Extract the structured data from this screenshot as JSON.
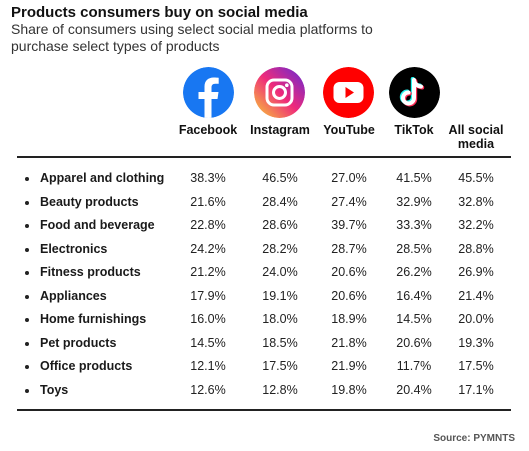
{
  "title": "Products consumers buy on social media",
  "subtitle": "Share of consumers using select social media platforms to purchase select types of products",
  "source": "Source: PYMNTS",
  "icons": {
    "facebook": "facebook-icon",
    "instagram": "instagram-icon",
    "youtube": "youtube-icon",
    "tiktok": "tiktok-icon"
  },
  "colors": {
    "facebook": "#1877f2",
    "instagram_start": "#f9ce34",
    "instagram_mid": "#ee2a7b",
    "instagram_end": "#6228d7",
    "youtube": "#ff0000",
    "tiktok_bg": "#000000",
    "tiktok_cyan": "#25f4ee",
    "tiktok_red": "#fe2c55"
  },
  "chart_data": {
    "type": "table",
    "title": "Products consumers buy on social media",
    "subtitle": "Share of consumers using select social media platforms to purchase select types of products",
    "columns": [
      "Facebook",
      "Instagram",
      "YouTube",
      "TikTok",
      "All social media"
    ],
    "rows": [
      {
        "label": "Apparel and clothing",
        "values": [
          "38.3%",
          "46.5%",
          "27.0%",
          "41.5%",
          "45.5%"
        ]
      },
      {
        "label": "Beauty products",
        "values": [
          "21.6%",
          "28.4%",
          "27.4%",
          "32.9%",
          "32.8%"
        ]
      },
      {
        "label": "Food and beverage",
        "values": [
          "22.8%",
          "28.6%",
          "39.7%",
          "33.3%",
          "32.2%"
        ]
      },
      {
        "label": "Electronics",
        "values": [
          "24.2%",
          "28.2%",
          "28.7%",
          "28.5%",
          "28.8%"
        ]
      },
      {
        "label": "Fitness products",
        "values": [
          "21.2%",
          "24.0%",
          "20.6%",
          "26.2%",
          "26.9%"
        ]
      },
      {
        "label": "Appliances",
        "values": [
          "17.9%",
          "19.1%",
          "20.6%",
          "16.4%",
          "21.4%"
        ]
      },
      {
        "label": "Home furnishings",
        "values": [
          "16.0%",
          "18.0%",
          "18.9%",
          "14.5%",
          "20.0%"
        ]
      },
      {
        "label": "Pet products",
        "values": [
          "14.5%",
          "18.5%",
          "21.8%",
          "20.6%",
          "19.3%"
        ]
      },
      {
        "label": "Office products",
        "values": [
          "12.1%",
          "17.5%",
          "21.9%",
          "11.7%",
          "17.5%"
        ]
      },
      {
        "label": "Toys",
        "values": [
          "12.6%",
          "12.8%",
          "19.8%",
          "20.4%",
          "17.1%"
        ]
      }
    ]
  }
}
